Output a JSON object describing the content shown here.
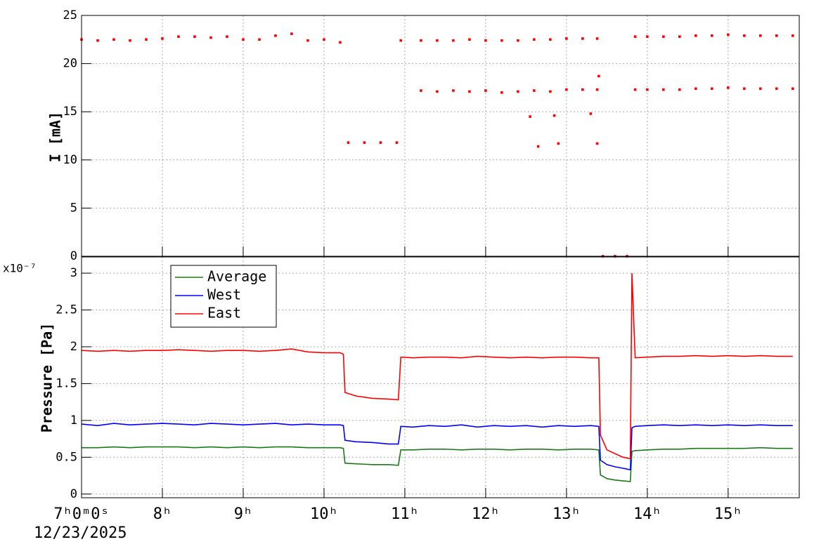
{
  "chart_data": [
    {
      "type": "scatter",
      "ylabel": "I [mA]",
      "ylim": [
        0,
        25
      ],
      "yticks": [
        0,
        5,
        10,
        15,
        20,
        25
      ],
      "xlim": [
        7,
        15.88
      ],
      "grid": true,
      "series": [
        {
          "color": "#ff0000",
          "x": [
            7.0,
            7.2,
            7.4,
            7.6,
            7.8,
            8.0,
            8.2,
            8.4,
            8.6,
            8.8,
            9.0,
            9.2,
            9.4,
            9.6,
            9.8,
            10.0,
            10.2,
            10.3,
            10.5,
            10.7,
            10.9,
            10.95,
            11.2,
            11.4,
            11.6,
            11.8,
            12.0,
            12.2,
            12.4,
            12.6,
            12.8,
            13.0,
            13.2,
            13.38,
            11.2,
            11.4,
            11.6,
            11.8,
            12.0,
            12.2,
            12.4,
            12.6,
            12.8,
            13.0,
            13.2,
            13.38,
            12.55,
            12.65,
            12.85,
            12.9,
            13.3,
            13.38,
            13.4,
            13.45,
            13.6,
            13.75,
            13.85,
            14.0,
            14.2,
            14.4,
            14.6,
            14.8,
            15.0,
            15.2,
            15.4,
            15.6,
            15.8,
            13.85,
            14.0,
            14.2,
            14.4,
            14.6,
            14.8,
            15.0,
            15.2,
            15.4,
            15.6,
            15.8
          ],
          "values": [
            22.5,
            22.4,
            22.5,
            22.4,
            22.5,
            22.6,
            22.8,
            22.8,
            22.7,
            22.8,
            22.5,
            22.5,
            22.9,
            23.1,
            22.4,
            22.5,
            22.2,
            11.8,
            11.8,
            11.8,
            11.8,
            22.4,
            22.4,
            22.4,
            22.4,
            22.5,
            22.4,
            22.4,
            22.4,
            22.5,
            22.5,
            22.6,
            22.6,
            22.6,
            17.2,
            17.1,
            17.2,
            17.1,
            17.2,
            17.0,
            17.1,
            17.2,
            17.1,
            17.3,
            17.3,
            17.3,
            14.5,
            11.4,
            14.6,
            11.7,
            14.8,
            11.7,
            18.7,
            0,
            0,
            0,
            22.8,
            22.8,
            22.8,
            22.8,
            22.9,
            22.9,
            23.0,
            22.9,
            22.9,
            22.9,
            22.9,
            17.3,
            17.3,
            17.3,
            17.3,
            17.4,
            17.4,
            17.5,
            17.4,
            17.4,
            17.4,
            17.4
          ]
        }
      ]
    },
    {
      "type": "line",
      "ylabel": "Pressure [Pa]",
      "y_scale_label": "x10⁻⁷",
      "ylim": [
        -0.05,
        3.22
      ],
      "yticks": [
        0,
        0.5,
        1,
        1.5,
        2,
        2.5,
        3
      ],
      "xlim": [
        7,
        15.88
      ],
      "grid": true,
      "legend": "upper left",
      "x_date": "12/23/2025",
      "xticks": [
        {
          "value": 7,
          "label": "7ʰ0ᵐ0ˢ"
        },
        {
          "value": 8,
          "label": "8ʰ"
        },
        {
          "value": 9,
          "label": "9ʰ"
        },
        {
          "value": 10,
          "label": "10ʰ"
        },
        {
          "value": 11,
          "label": "11ʰ"
        },
        {
          "value": 12,
          "label": "12ʰ"
        },
        {
          "value": 13,
          "label": "13ʰ"
        },
        {
          "value": 14,
          "label": "14ʰ"
        },
        {
          "value": 15,
          "label": "15ʰ"
        }
      ],
      "x": [
        7.0,
        7.2,
        7.4,
        7.6,
        7.8,
        8.0,
        8.2,
        8.4,
        8.6,
        8.8,
        9.0,
        9.2,
        9.4,
        9.6,
        9.8,
        10.0,
        10.2,
        10.24,
        10.26,
        10.4,
        10.6,
        10.8,
        10.92,
        10.95,
        11.1,
        11.3,
        11.5,
        11.7,
        11.9,
        12.1,
        12.3,
        12.5,
        12.7,
        12.9,
        13.1,
        13.3,
        13.4,
        13.42,
        13.5,
        13.6,
        13.7,
        13.79,
        13.81,
        13.85,
        14.0,
        14.2,
        14.4,
        14.6,
        14.8,
        15.0,
        15.2,
        15.4,
        15.6,
        15.8
      ],
      "series": [
        {
          "name": "Average",
          "color": "#1a7a1a",
          "values": [
            0.63,
            0.63,
            0.64,
            0.63,
            0.64,
            0.64,
            0.64,
            0.63,
            0.64,
            0.63,
            0.64,
            0.63,
            0.64,
            0.64,
            0.63,
            0.63,
            0.63,
            0.62,
            0.42,
            0.41,
            0.4,
            0.4,
            0.39,
            0.6,
            0.6,
            0.61,
            0.61,
            0.6,
            0.61,
            0.61,
            0.6,
            0.61,
            0.61,
            0.6,
            0.61,
            0.61,
            0.6,
            0.26,
            0.21,
            0.19,
            0.18,
            0.17,
            0.58,
            0.59,
            0.6,
            0.61,
            0.61,
            0.62,
            0.62,
            0.62,
            0.62,
            0.63,
            0.62,
            0.62
          ]
        },
        {
          "name": "West",
          "color": "#0000ff",
          "values": [
            0.95,
            0.93,
            0.96,
            0.94,
            0.95,
            0.96,
            0.95,
            0.94,
            0.96,
            0.95,
            0.94,
            0.95,
            0.96,
            0.94,
            0.95,
            0.94,
            0.94,
            0.93,
            0.73,
            0.71,
            0.7,
            0.68,
            0.68,
            0.92,
            0.91,
            0.93,
            0.92,
            0.94,
            0.91,
            0.93,
            0.92,
            0.93,
            0.91,
            0.93,
            0.92,
            0.93,
            0.92,
            0.46,
            0.4,
            0.37,
            0.35,
            0.33,
            0.9,
            0.92,
            0.93,
            0.94,
            0.93,
            0.94,
            0.93,
            0.94,
            0.93,
            0.94,
            0.93,
            0.93
          ]
        },
        {
          "name": "East",
          "color": "#ff0000",
          "values": [
            1.95,
            1.94,
            1.95,
            1.94,
            1.95,
            1.95,
            1.96,
            1.95,
            1.94,
            1.95,
            1.95,
            1.94,
            1.95,
            1.97,
            1.93,
            1.92,
            1.92,
            1.9,
            1.38,
            1.33,
            1.3,
            1.29,
            1.28,
            1.86,
            1.85,
            1.86,
            1.86,
            1.85,
            1.87,
            1.86,
            1.85,
            1.86,
            1.85,
            1.86,
            1.86,
            1.85,
            1.85,
            0.8,
            0.6,
            0.55,
            0.5,
            0.48,
            3.0,
            1.85,
            1.86,
            1.87,
            1.87,
            1.88,
            1.87,
            1.88,
            1.87,
            1.88,
            1.87,
            1.87
          ]
        }
      ]
    }
  ]
}
